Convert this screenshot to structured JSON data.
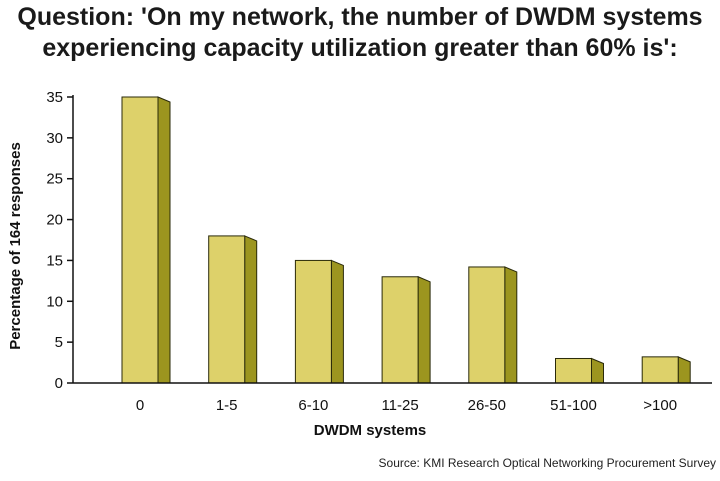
{
  "chart_data": {
    "type": "bar",
    "title_lines": [
      "Question: 'On my network, the number of DWDM systems",
      "experiencing capacity utilization greater than 60% is':"
    ],
    "categories": [
      "0",
      "1-5",
      "6-10",
      "11-25",
      "26-50",
      "51-100",
      ">100"
    ],
    "values": [
      35,
      18,
      15,
      13,
      14.2,
      3,
      3.2
    ],
    "xlabel": "DWDM systems",
    "ylabel": "Percentage of 164 responses",
    "ylim": [
      0,
      35
    ],
    "yticks": [
      0,
      5,
      10,
      15,
      20,
      25,
      30,
      35
    ],
    "grid": false,
    "bar_color": "#ddd16a",
    "bar_side_color": "#9c951f",
    "bar_edge_color": "#2a2a0a",
    "source": "Source: KMI Research Optical Networking Procurement Survey"
  }
}
